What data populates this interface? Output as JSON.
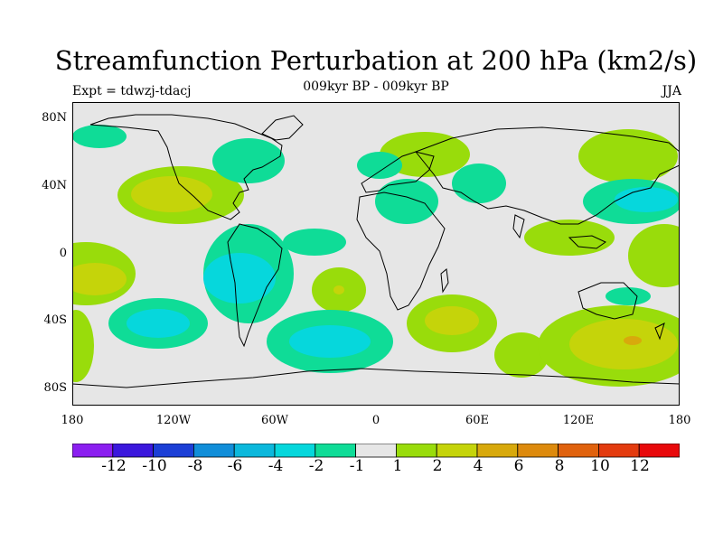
{
  "title": "Streamfunction Perturbation at 200 hPa (km2/s)",
  "subtitle": "009kyr BP - 009kyr BP",
  "left_label": "Expt = tdwzj-tdacj",
  "right_label": "JJA",
  "lat_labels": [
    "80N",
    "40N",
    "0",
    "40S",
    "80S"
  ],
  "lon_labels": [
    "180",
    "120W",
    "60W",
    "0",
    "60E",
    "120E",
    "180"
  ],
  "colorbar": {
    "labels": [
      "-12",
      "-10",
      "-8",
      "-6",
      "-4",
      "-2",
      "-1",
      "1",
      "2",
      "4",
      "6",
      "8",
      "10",
      "12"
    ],
    "colors": [
      "#8b1ff0",
      "#3b18dd",
      "#1c3fd6",
      "#118ed9",
      "#0cb8dc",
      "#06d7dc",
      "#0fdc97",
      "#e6e6e6",
      "#99dc0b",
      "#c5d40a",
      "#d8a90c",
      "#dd8a0d",
      "#e0620e",
      "#e33b0f",
      "#e8090b"
    ]
  },
  "colors": {
    "background_field": "#e6e6e6",
    "land_outline": "#000000"
  }
}
